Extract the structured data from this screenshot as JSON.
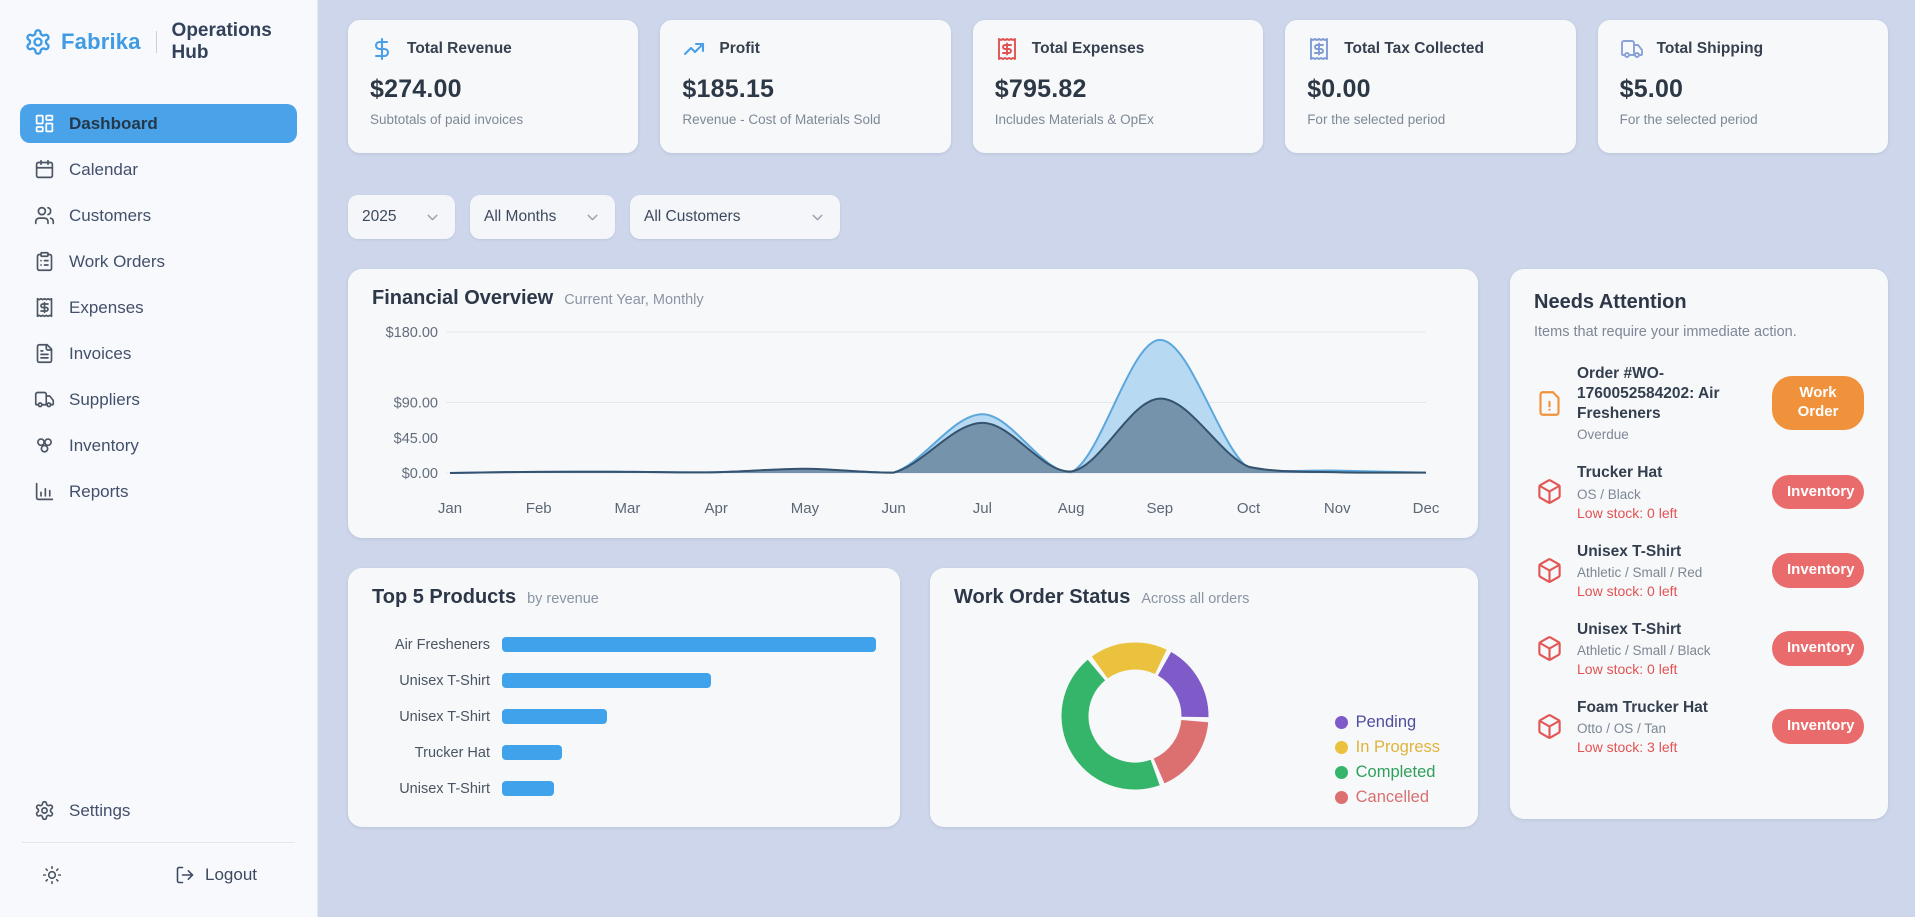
{
  "brand": {
    "name": "Fabrika",
    "product": "Operations Hub"
  },
  "sidebar": {
    "items": [
      {
        "label": "Dashboard",
        "icon": "dashboard-icon",
        "active": true
      },
      {
        "label": "Calendar",
        "icon": "calendar-icon",
        "active": false
      },
      {
        "label": "Customers",
        "icon": "users-icon",
        "active": false
      },
      {
        "label": "Work Orders",
        "icon": "clipboard-list-icon",
        "active": false
      },
      {
        "label": "Expenses",
        "icon": "receipt-icon",
        "active": false
      },
      {
        "label": "Invoices",
        "icon": "file-text-icon",
        "active": false
      },
      {
        "label": "Suppliers",
        "icon": "truck-icon",
        "active": false
      },
      {
        "label": "Inventory",
        "icon": "boxes-icon",
        "active": false
      },
      {
        "label": "Reports",
        "icon": "bar-chart-icon",
        "active": false
      }
    ],
    "settings_label": "Settings",
    "logout_label": "Logout"
  },
  "stats": [
    {
      "label": "Total Revenue",
      "value": "$274.00",
      "caption": "Subtotals of paid invoices",
      "icon": "dollar-icon",
      "icon_color": "#4aa0e8"
    },
    {
      "label": "Profit",
      "value": "$185.15",
      "caption": "Revenue - Cost of Materials Sold",
      "icon": "trending-up-icon",
      "icon_color": "#4aa0e8"
    },
    {
      "label": "Total Expenses",
      "value": "$795.82",
      "caption": "Includes Materials & OpEx",
      "icon": "receipt-icon",
      "icon_color": "#e05252"
    },
    {
      "label": "Total Tax Collected",
      "value": "$0.00",
      "caption": "For the selected period",
      "icon": "receipt-icon",
      "icon_color": "#7f9bd4"
    },
    {
      "label": "Total Shipping",
      "value": "$5.00",
      "caption": "For the selected period",
      "icon": "truck-icon",
      "icon_color": "#8aa2d8"
    }
  ],
  "filters": {
    "year": "2025",
    "month": "All Months",
    "customer": "All Customers"
  },
  "chart_data": [
    {
      "type": "area",
      "title": "Financial Overview",
      "subtitle": "Current Year, Monthly",
      "x": [
        "Jan",
        "Feb",
        "Mar",
        "Apr",
        "May",
        "Jun",
        "Jul",
        "Aug",
        "Sep",
        "Oct",
        "Nov",
        "Dec"
      ],
      "ylim": [
        0,
        180
      ],
      "yticks": [
        {
          "value": 180,
          "label": "$180.00"
        },
        {
          "value": 90,
          "label": "$90.00"
        },
        {
          "value": 45,
          "label": "$45.00"
        },
        {
          "value": 0,
          "label": "$0.00"
        }
      ],
      "gridline_values": [
        180,
        90,
        0
      ],
      "legend_position": "none",
      "series": [
        {
          "name": "series-1",
          "line_color": "#5ca7dc",
          "fill_color": "#b3d7f1",
          "fill_opacity": 0.95,
          "values": [
            0,
            1.5,
            1.5,
            1,
            5,
            0.5,
            75,
            1,
            170,
            6,
            3,
            0.5
          ]
        },
        {
          "name": "series-2",
          "line_color": "#35536f",
          "fill_color": "#6f8da4",
          "fill_opacity": 0.92,
          "values": [
            0,
            1.5,
            1.5,
            1,
            5.5,
            0.5,
            64,
            2,
            95,
            8,
            1,
            0.5
          ]
        }
      ]
    },
    {
      "type": "bar",
      "orientation": "horizontal",
      "title": "Top 5 Products",
      "subtitle": "by revenue",
      "categories": [
        "Air Fresheners",
        "Unisex T-Shirt",
        "Unisex T-Shirt",
        "Trucker Hat",
        "Unisex T-Shirt"
      ],
      "values_relative": [
        1.0,
        0.56,
        0.28,
        0.16,
        0.14
      ],
      "bar_color": "#3fa2ea",
      "xlim": [
        0,
        1
      ],
      "grid": false
    },
    {
      "type": "pie",
      "donut": true,
      "title": "Work Order Status",
      "subtitle": "Across all orders",
      "start_angle_deg": -38,
      "segments": [
        {
          "label": "In Progress",
          "value": 2
        },
        {
          "label": "Pending",
          "value": 2
        },
        {
          "label": "Cancelled",
          "value": 2
        },
        {
          "label": "Completed",
          "value": 5
        }
      ],
      "legend_position": "right",
      "legend": [
        {
          "label": "Pending",
          "color": "#7e5bc8",
          "text_color": "#504d9e"
        },
        {
          "label": "In Progress",
          "color": "#eac23d",
          "text_color": "#dfb43c"
        },
        {
          "label": "Completed",
          "color": "#35b569",
          "text_color": "#2f9f5c"
        },
        {
          "label": "Cancelled",
          "color": "#dc7070",
          "text_color": "#da6f6f"
        }
      ]
    }
  ],
  "needs_attention": {
    "title": "Needs Attention",
    "subtitle": "Items that require your immediate action.",
    "items": [
      {
        "icon": "file-warning-icon",
        "title": "Order #WO-1760052584202: Air Fresheners",
        "meta": "Overdue",
        "alert": "",
        "badge": "Work Order",
        "badge_color": "#f0913b"
      },
      {
        "icon": "package-icon",
        "title": "Trucker Hat",
        "meta": "OS / Black",
        "alert": "Low stock: 0 left",
        "badge": "Inventory",
        "badge_color": "#ea6b6b"
      },
      {
        "icon": "package-icon",
        "title": "Unisex T-Shirt",
        "meta": "Athletic / Small / Red",
        "alert": "Low stock: 0 left",
        "badge": "Inventory",
        "badge_color": "#ea6b6b"
      },
      {
        "icon": "package-icon",
        "title": "Unisex T-Shirt",
        "meta": "Athletic / Small / Black",
        "alert": "Low stock: 0 left",
        "badge": "Inventory",
        "badge_color": "#ea6b6b"
      },
      {
        "icon": "package-icon",
        "title": "Foam Trucker Hat",
        "meta": "Otto / OS / Tan",
        "alert": "Low stock: 3 left",
        "badge": "Inventory",
        "badge_color": "#ea6b6b"
      }
    ]
  }
}
